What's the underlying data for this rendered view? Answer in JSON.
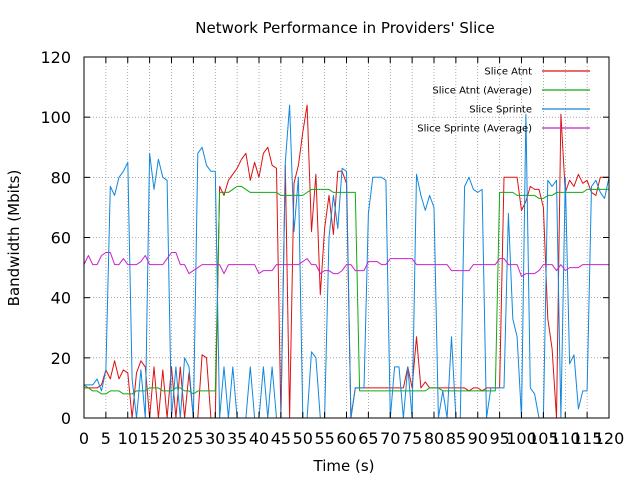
{
  "chart_data": {
    "type": "line",
    "title": "Network Performance in Providers' Slice",
    "xlabel": "Time (s)",
    "ylabel": "Bandwidth (Mbits)",
    "xlim": [
      0,
      120
    ],
    "ylim": [
      0,
      120
    ],
    "xticks": [
      0,
      5,
      10,
      15,
      20,
      25,
      30,
      35,
      40,
      45,
      50,
      55,
      60,
      65,
      70,
      75,
      80,
      85,
      90,
      95,
      100,
      105,
      110,
      115,
      120
    ],
    "yticks": [
      0,
      20,
      40,
      60,
      80,
      100,
      120
    ],
    "grid": true,
    "legend_position": "top-right",
    "series": [
      {
        "name": "Slice Atnt",
        "color": "#dd1111",
        "x": [
          0,
          1,
          2,
          3,
          4,
          5,
          6,
          7,
          8,
          9,
          10,
          11,
          12,
          13,
          14,
          15,
          16,
          17,
          18,
          19,
          20,
          21,
          22,
          23,
          24,
          25,
          26,
          27,
          28,
          29,
          30,
          31,
          32,
          33,
          34,
          35,
          36,
          37,
          38,
          39,
          40,
          41,
          42,
          43,
          44,
          45,
          46,
          47,
          48,
          49,
          50,
          51,
          52,
          53,
          54,
          55,
          56,
          57,
          58,
          59,
          60,
          61,
          62,
          63,
          64,
          65,
          66,
          67,
          68,
          69,
          70,
          71,
          72,
          73,
          74,
          75,
          76,
          77,
          78,
          79,
          80,
          81,
          82,
          83,
          84,
          85,
          86,
          87,
          88,
          89,
          90,
          91,
          92,
          93,
          94,
          95,
          96,
          97,
          98,
          99,
          100,
          101,
          102,
          103,
          104,
          105,
          106,
          107,
          108,
          109,
          110,
          111,
          112,
          113,
          114,
          115,
          116,
          117,
          118,
          119,
          120
        ],
        "y": [
          10,
          10,
          10,
          10,
          11,
          16,
          13,
          19,
          13,
          16,
          15,
          0,
          15,
          19,
          17,
          0,
          17,
          0,
          16,
          0,
          17,
          0,
          17,
          0,
          15,
          0,
          0,
          21,
          20,
          0,
          0,
          77,
          74,
          79,
          81,
          83,
          86,
          88,
          79,
          85,
          80,
          88,
          90,
          84,
          83,
          0,
          84,
          0,
          78,
          84,
          95,
          104,
          62,
          81,
          41,
          63,
          74,
          61,
          82,
          82,
          78,
          0,
          10,
          10,
          10,
          10,
          10,
          10,
          10,
          10,
          10,
          10,
          10,
          10,
          17,
          10,
          27,
          10,
          12,
          10,
          10,
          10,
          10,
          10,
          10,
          10,
          10,
          10,
          9,
          10,
          10,
          9,
          10,
          10,
          10,
          10,
          80,
          80,
          80,
          80,
          69,
          72,
          77,
          76,
          76,
          70,
          33,
          23,
          0,
          101,
          75,
          79,
          77,
          81,
          78,
          79,
          75,
          74,
          80,
          80,
          80
        ]
      },
      {
        "name": "Slice Atnt (Average)",
        "color": "#11aa11",
        "x": [
          0,
          1,
          2,
          3,
          4,
          5,
          6,
          7,
          8,
          9,
          10,
          11,
          12,
          13,
          14,
          15,
          16,
          17,
          18,
          19,
          20,
          21,
          22,
          23,
          24,
          25,
          26,
          27,
          28,
          29,
          30,
          31,
          32,
          33,
          34,
          35,
          36,
          37,
          38,
          39,
          40,
          41,
          42,
          43,
          44,
          45,
          46,
          47,
          48,
          49,
          50,
          51,
          52,
          53,
          54,
          55,
          56,
          57,
          58,
          59,
          60,
          61,
          62,
          63,
          64,
          65,
          66,
          67,
          68,
          69,
          70,
          71,
          72,
          73,
          74,
          75,
          76,
          77,
          78,
          79,
          80,
          81,
          82,
          83,
          84,
          85,
          86,
          87,
          88,
          89,
          90,
          91,
          92,
          93,
          94,
          95,
          96,
          97,
          98,
          99,
          100,
          101,
          102,
          103,
          104,
          105,
          106,
          107,
          108,
          109,
          110,
          111,
          112,
          113,
          114,
          115,
          116,
          117,
          118,
          119,
          120
        ],
        "y": [
          11,
          10,
          9,
          9,
          8,
          8,
          9,
          9,
          9,
          8,
          8,
          8,
          9,
          9,
          9,
          10,
          10,
          10,
          9,
          9,
          9,
          10,
          10,
          9,
          9,
          8,
          9,
          9,
          9,
          9,
          9,
          75,
          75,
          75,
          76,
          77,
          77,
          76,
          75,
          75,
          75,
          75,
          75,
          75,
          75,
          74,
          74,
          74,
          74,
          74,
          74,
          75,
          76,
          76,
          76,
          76,
          76,
          75,
          75,
          75,
          75,
          75,
          75,
          9,
          9,
          9,
          9,
          9,
          9,
          9,
          9,
          9,
          9,
          9,
          9,
          9,
          9,
          9,
          9,
          10,
          10,
          10,
          9,
          9,
          9,
          9,
          9,
          9,
          9,
          9,
          9,
          9,
          9,
          9,
          9,
          75,
          75,
          75,
          75,
          74,
          74,
          74,
          74,
          74,
          73,
          73,
          74,
          74,
          75,
          75,
          75,
          75,
          75,
          75,
          75,
          76,
          76,
          76,
          76,
          76,
          76
        ]
      },
      {
        "name": "Slice Sprinte",
        "color": "#1188dd",
        "x": [
          0,
          1,
          2,
          3,
          4,
          5,
          6,
          7,
          8,
          9,
          10,
          11,
          12,
          13,
          14,
          15,
          16,
          17,
          18,
          19,
          20,
          21,
          22,
          23,
          24,
          25,
          26,
          27,
          28,
          29,
          30,
          31,
          32,
          33,
          34,
          35,
          36,
          37,
          38,
          39,
          40,
          41,
          42,
          43,
          44,
          45,
          46,
          47,
          48,
          49,
          50,
          51,
          52,
          53,
          54,
          55,
          56,
          57,
          58,
          59,
          60,
          61,
          62,
          63,
          64,
          65,
          66,
          67,
          68,
          69,
          70,
          71,
          72,
          73,
          74,
          75,
          76,
          77,
          78,
          79,
          80,
          81,
          82,
          83,
          84,
          85,
          86,
          87,
          88,
          89,
          90,
          91,
          92,
          93,
          94,
          95,
          96,
          97,
          98,
          99,
          100,
          101,
          102,
          103,
          104,
          105,
          106,
          107,
          108,
          109,
          110,
          111,
          112,
          113,
          114,
          115,
          116,
          117,
          118,
          119,
          120
        ],
        "y": [
          11,
          11,
          11,
          13,
          9,
          16,
          77,
          74,
          80,
          82,
          85,
          13,
          0,
          16,
          0,
          88,
          76,
          86,
          80,
          79,
          0,
          17,
          0,
          20,
          17,
          0,
          88,
          90,
          84,
          82,
          82,
          0,
          17,
          0,
          17,
          0,
          0,
          0,
          17,
          0,
          0,
          17,
          0,
          17,
          0,
          0,
          85,
          104,
          62,
          80,
          0,
          0,
          22,
          20,
          0,
          0,
          60,
          74,
          63,
          83,
          82,
          0,
          10,
          10,
          10,
          68,
          80,
          80,
          80,
          79,
          0,
          17,
          17,
          0,
          17,
          0,
          81,
          74,
          69,
          74,
          70,
          0,
          9,
          0,
          27,
          0,
          0,
          77,
          80,
          76,
          75,
          76,
          0,
          10,
          10,
          10,
          10,
          68,
          33,
          27,
          0,
          101,
          10,
          8,
          0,
          0,
          79,
          77,
          79,
          0,
          80,
          18,
          21,
          3,
          9,
          9,
          77,
          79,
          75,
          73,
          80
        ]
      },
      {
        "name": "Slice Sprinte (Average)",
        "color": "#cc22cc",
        "x": [
          0,
          1,
          2,
          3,
          4,
          5,
          6,
          7,
          8,
          9,
          10,
          11,
          12,
          13,
          14,
          15,
          16,
          17,
          18,
          19,
          20,
          21,
          22,
          23,
          24,
          25,
          26,
          27,
          28,
          29,
          30,
          31,
          32,
          33,
          34,
          35,
          36,
          37,
          38,
          39,
          40,
          41,
          42,
          43,
          44,
          45,
          46,
          47,
          48,
          49,
          50,
          51,
          52,
          53,
          54,
          55,
          56,
          57,
          58,
          59,
          60,
          61,
          62,
          63,
          64,
          65,
          66,
          67,
          68,
          69,
          70,
          71,
          72,
          73,
          74,
          75,
          76,
          77,
          78,
          79,
          80,
          81,
          82,
          83,
          84,
          85,
          86,
          87,
          88,
          89,
          90,
          91,
          92,
          93,
          94,
          95,
          96,
          97,
          98,
          99,
          100,
          101,
          102,
          103,
          104,
          105,
          106,
          107,
          108,
          109,
          110,
          111,
          112,
          113,
          114,
          115,
          116,
          117,
          118,
          119,
          120
        ],
        "y": [
          51,
          54,
          51,
          51,
          54,
          55,
          55,
          51,
          51,
          53,
          51,
          51,
          51,
          52,
          54,
          51,
          51,
          51,
          51,
          53,
          55,
          55,
          51,
          51,
          48,
          49,
          50,
          51,
          51,
          51,
          51,
          51,
          48,
          51,
          51,
          51,
          51,
          51,
          51,
          51,
          48,
          49,
          49,
          49,
          51,
          51,
          51,
          51,
          51,
          51,
          52,
          53,
          51,
          51,
          48,
          49,
          49,
          48,
          48,
          49,
          51,
          51,
          49,
          49,
          49,
          52,
          52,
          52,
          51,
          51,
          53,
          53,
          53,
          53,
          53,
          53,
          51,
          51,
          51,
          51,
          51,
          51,
          51,
          51,
          49,
          49,
          49,
          49,
          49,
          51,
          51,
          51,
          51,
          51,
          51,
          53,
          53,
          51,
          51,
          51,
          47,
          48,
          48,
          48,
          49,
          51,
          51,
          51,
          49,
          51,
          49,
          50,
          50,
          50,
          51,
          51,
          51,
          51,
          51,
          51,
          51
        ]
      }
    ]
  }
}
